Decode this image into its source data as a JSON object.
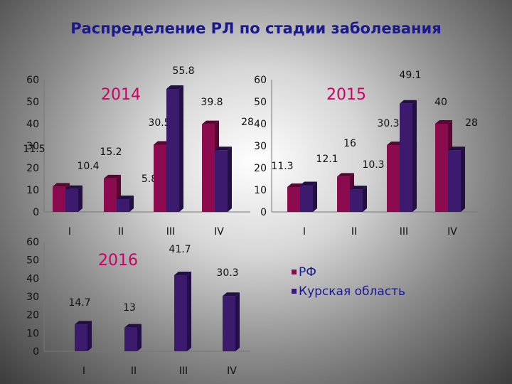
{
  "title": "Распределение РЛ по стадии заболевания",
  "colors": {
    "rf": "#8c0a4e",
    "kursk": "#3c1a6e",
    "rf_side": "#5a0632",
    "kursk_side": "#221044"
  },
  "legend": {
    "series": [
      "РФ",
      "Курская область"
    ]
  },
  "chart_data": [
    {
      "type": "bar",
      "title": "2014",
      "categories": [
        "I",
        "II",
        "III",
        "IV"
      ],
      "series": [
        {
          "name": "РФ",
          "values": [
            11.5,
            15.2,
            30.5,
            39.8
          ]
        },
        {
          "name": "Курская область",
          "values": [
            10.4,
            5.8,
            55.8,
            28
          ]
        }
      ],
      "ylim": [
        0,
        60
      ],
      "yticks": [
        "0",
        "10",
        "20",
        "30",
        "40",
        "50",
        "60"
      ]
    },
    {
      "type": "bar",
      "title": "2015",
      "categories": [
        "I",
        "II",
        "III",
        "IV"
      ],
      "series": [
        {
          "name": "РФ",
          "values": [
            11.3,
            16,
            30.3,
            40
          ]
        },
        {
          "name": "Курская область",
          "values": [
            12.1,
            10.3,
            49.1,
            28
          ]
        }
      ],
      "ylim": [
        0,
        60
      ],
      "yticks": [
        "0",
        "10",
        "20",
        "30",
        "40",
        "50",
        "60"
      ]
    },
    {
      "type": "bar",
      "title": "2016",
      "categories": [
        "I",
        "II",
        "III",
        "IV"
      ],
      "series": [
        {
          "name": "Курская область",
          "values": [
            14.7,
            13,
            41.7,
            30.3
          ]
        }
      ],
      "ylim": [
        0,
        60
      ],
      "yticks": [
        "0",
        "10",
        "20",
        "30",
        "40",
        "50",
        "60"
      ]
    }
  ]
}
